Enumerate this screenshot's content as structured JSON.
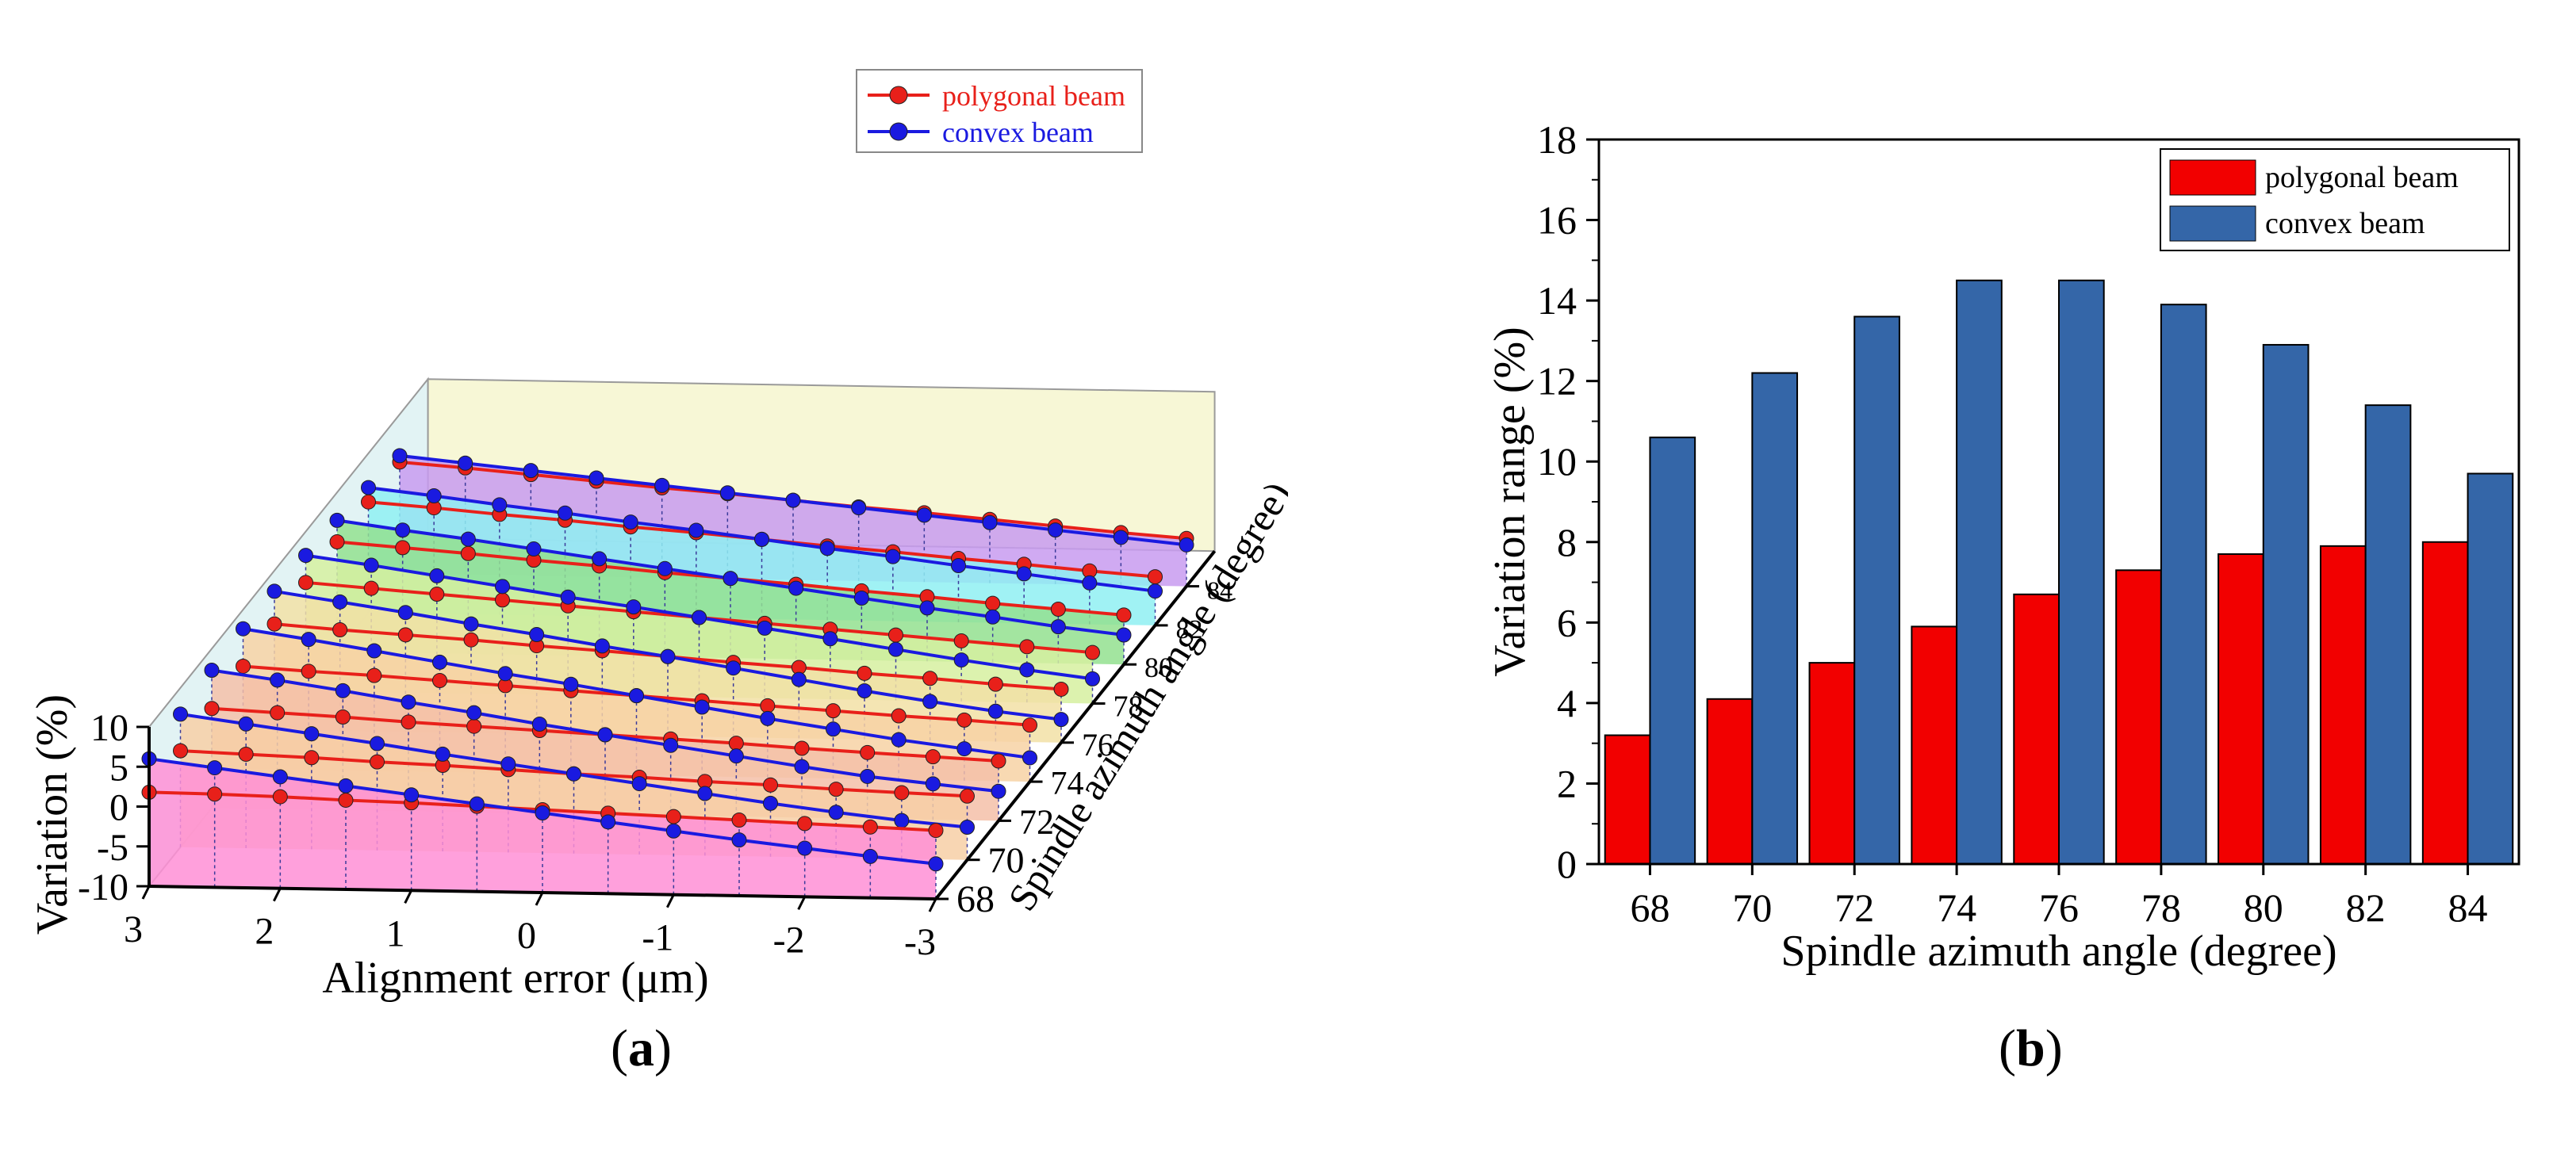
{
  "chart_data": [
    {
      "type": "line",
      "panel": "a",
      "view": "3d-waterfall",
      "caption_letter": "a",
      "xlabel": "Alignment error (μm)",
      "ylabel": "Variation (%)",
      "zlabel": "Spindle azimuth angle (degree)",
      "x_ticks": [
        "3",
        "2",
        "1",
        "0",
        "-1",
        "-2",
        "-3"
      ],
      "y_ticks": [
        "-10",
        "-5",
        "0",
        "5",
        "10"
      ],
      "z_ticks": [
        "68",
        "70",
        "72",
        "74",
        "76",
        "78",
        "80",
        "82",
        "84"
      ],
      "x": [
        3.0,
        2.5,
        2.0,
        1.5,
        1.0,
        0.5,
        0.0,
        -0.5,
        -1.0,
        -1.5,
        -2.0,
        -2.5,
        -3.0
      ],
      "xlim": [
        3,
        -3
      ],
      "ylim": [
        -10,
        10
      ],
      "legend_position": "top-right",
      "plane_colors": [
        "#ff8fd6",
        "#f7cfa6",
        "#f5bfa8",
        "#f7d2a4",
        "#f2e1a6",
        "#d6f0a0",
        "#93e08f",
        "#8ff0f2",
        "#c89bf0"
      ],
      "series": [
        {
          "name": "polygonal beam",
          "color": "#e8201a",
          "by_angle": [
            {
              "angle": 68,
              "values": [
                1.8,
                1.7,
                1.5,
                1.2,
                1.0,
                0.7,
                0.4,
                0.1,
                -0.2,
                -0.5,
                -0.8,
                -1.1,
                -1.4
              ]
            },
            {
              "angle": 70,
              "values": [
                2.1,
                1.8,
                1.5,
                1.1,
                0.8,
                0.4,
                0.0,
                -0.3,
                -0.7,
                -1.0,
                -1.4,
                -1.7,
                -2.0
              ]
            },
            {
              "angle": 72,
              "values": [
                2.5,
                2.1,
                1.7,
                1.2,
                0.8,
                0.4,
                0.0,
                -0.4,
                -0.8,
                -1.3,
                -1.7,
                -2.1,
                -2.5
              ]
            },
            {
              "angle": 74,
              "values": [
                2.9,
                2.4,
                2.0,
                1.5,
                1.0,
                0.5,
                0.0,
                -0.5,
                -1.0,
                -1.5,
                -2.0,
                -2.4,
                -2.9
              ]
            },
            {
              "angle": 76,
              "values": [
                3.3,
                2.7,
                2.2,
                1.7,
                1.1,
                0.6,
                0.0,
                -0.6,
                -1.1,
                -1.7,
                -2.2,
                -2.8,
                -3.3
              ]
            },
            {
              "angle": 78,
              "values": [
                3.6,
                3.0,
                2.4,
                1.8,
                1.2,
                0.6,
                0.0,
                -0.6,
                -1.2,
                -1.8,
                -2.4,
                -3.0,
                -3.6
              ]
            },
            {
              "angle": 80,
              "values": [
                3.8,
                3.2,
                2.6,
                1.9,
                1.3,
                0.6,
                0.0,
                -0.6,
                -1.3,
                -1.9,
                -2.6,
                -3.2,
                -3.8
              ]
            },
            {
              "angle": 82,
              "values": [
                3.9,
                3.3,
                2.6,
                2.0,
                1.3,
                0.7,
                0.0,
                -0.7,
                -1.3,
                -2.0,
                -2.6,
                -3.3,
                -3.9
              ]
            },
            {
              "angle": 84,
              "values": [
                4.0,
                3.4,
                2.7,
                2.0,
                1.3,
                0.7,
                0.0,
                -0.7,
                -1.3,
                -2.0,
                -2.7,
                -3.4,
                -4.0
              ]
            }
          ]
        },
        {
          "name": "convex beam",
          "color": "#1a1ae0",
          "by_angle": [
            {
              "angle": 68,
              "values": [
                6.0,
                5.0,
                4.0,
                3.0,
                2.0,
                1.0,
                0.0,
                -1.0,
                -2.0,
                -3.0,
                -3.9,
                -4.8,
                -5.6
              ]
            },
            {
              "angle": 70,
              "values": [
                6.7,
                5.6,
                4.5,
                3.4,
                2.2,
                1.1,
                0.0,
                -1.1,
                -2.2,
                -3.3,
                -4.3,
                -5.2,
                -5.9
              ]
            },
            {
              "angle": 72,
              "values": [
                7.3,
                6.2,
                5.0,
                3.7,
                2.5,
                1.2,
                0.0,
                -1.2,
                -2.4,
                -3.6,
                -4.7,
                -5.5,
                -6.3
              ]
            },
            {
              "angle": 74,
              "values": [
                7.6,
                6.4,
                5.1,
                3.8,
                2.5,
                1.3,
                0.0,
                -1.3,
                -2.6,
                -3.8,
                -5.0,
                -6.0,
                -7.0
              ]
            },
            {
              "angle": 76,
              "values": [
                7.4,
                6.2,
                5.0,
                3.7,
                2.5,
                1.2,
                0.0,
                -1.3,
                -2.6,
                -3.9,
                -5.1,
                -6.2,
                -7.1
              ]
            },
            {
              "angle": 78,
              "values": [
                7.0,
                5.9,
                4.7,
                3.5,
                2.3,
                1.2,
                0.0,
                -1.2,
                -2.4,
                -3.6,
                -4.8,
                -5.9,
                -6.9
              ]
            },
            {
              "angle": 80,
              "values": [
                6.5,
                5.4,
                4.4,
                3.3,
                2.2,
                1.1,
                0.0,
                -1.1,
                -2.2,
                -3.3,
                -4.3,
                -5.4,
                -6.3
              ]
            },
            {
              "angle": 82,
              "values": [
                5.7,
                4.8,
                3.8,
                2.9,
                1.9,
                1.0,
                0.0,
                -1.0,
                -1.9,
                -2.9,
                -3.8,
                -4.8,
                -5.7
              ]
            },
            {
              "angle": 84,
              "values": [
                4.8,
                4.0,
                3.2,
                2.4,
                1.6,
                0.8,
                0.0,
                -0.8,
                -1.6,
                -2.4,
                -3.2,
                -4.0,
                -4.8
              ]
            }
          ]
        }
      ]
    },
    {
      "type": "bar",
      "panel": "b",
      "caption_letter": "b",
      "categories": [
        "68",
        "70",
        "72",
        "74",
        "76",
        "78",
        "80",
        "82",
        "84"
      ],
      "xlabel": "Spindle azimuth angle (degree)",
      "ylabel": "Variation range (%)",
      "ylim": [
        0,
        18
      ],
      "y_ticks": [
        "0",
        "2",
        "4",
        "6",
        "8",
        "10",
        "12",
        "14",
        "16",
        "18"
      ],
      "legend_position": "top-right",
      "series": [
        {
          "name": "polygonal beam",
          "color": "#f20000",
          "values": [
            3.2,
            4.1,
            5.0,
            5.9,
            6.7,
            7.3,
            7.7,
            7.9,
            8.0
          ]
        },
        {
          "name": "convex beam",
          "color": "#3466a8",
          "values": [
            10.6,
            12.2,
            13.6,
            14.5,
            14.5,
            13.9,
            12.9,
            11.4,
            9.7
          ]
        }
      ]
    }
  ]
}
